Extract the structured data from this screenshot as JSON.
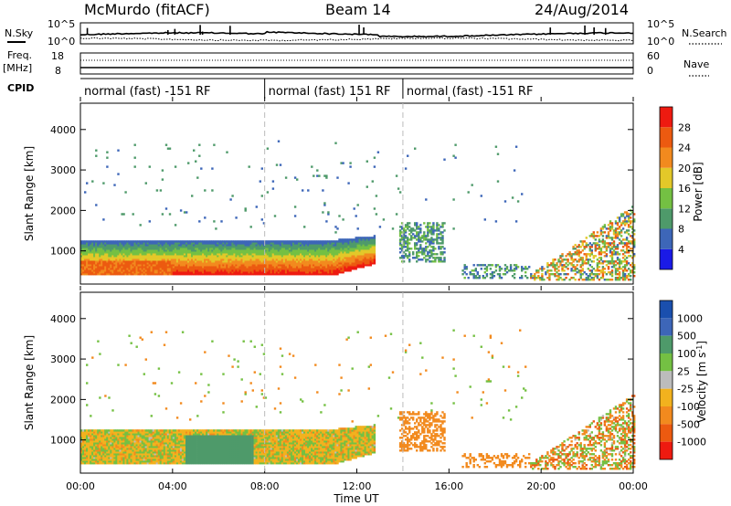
{
  "header": {
    "station": "McMurdo (fitACF)",
    "beam": "Beam 14",
    "date": "24/Aug/2014"
  },
  "summary_panel": {
    "nsky_label": "N.Sky",
    "nsky_ticks": [
      "10^5",
      "10^0"
    ],
    "nsearch_label": "N.Search",
    "nsearch_ticks": [
      "10^5",
      "10^0"
    ],
    "freq_label_1": "Freq.",
    "freq_label_2": "[MHz]",
    "freq_ticks": [
      "18",
      "8"
    ],
    "nave_label": "Nave",
    "nave_ticks": [
      "60",
      "0"
    ],
    "cpid_label": "CPID",
    "cpid_segments": [
      {
        "label": "normal (fast) -151 RF",
        "start": "00:00",
        "end": "08:00"
      },
      {
        "label": "normal (fast) 151 RF",
        "start": "08:00",
        "end": "14:00"
      },
      {
        "label": "normal (fast) -151 RF",
        "start": "14:00",
        "end": "24:00"
      }
    ]
  },
  "colors": {
    "power": [
      "#1a1ae6",
      "#3d66b8",
      "#4e9a6a",
      "#74c043",
      "#e3c829",
      "#f28a1e",
      "#ec5a10",
      "#ee1a10"
    ],
    "velocity": [
      "#ee1a10",
      "#ec5a10",
      "#f28a1e",
      "#f2b21e",
      "#bcbcbc",
      "#74c043",
      "#4e9a6a",
      "#3d66b8",
      "#1a4fae"
    ]
  },
  "chart_data": [
    {
      "type": "heatmap",
      "panel": "power",
      "xlabel": "",
      "ylabel": "Slant Range [km]",
      "xlim": [
        "00:00",
        "24:00"
      ],
      "ylim": [
        180,
        4650
      ],
      "y_ticks": [
        "1000",
        "2000",
        "3000",
        "4000"
      ],
      "colorbar_label": "Power [dB]",
      "colorbar_ticks": [
        "4",
        "8",
        "12",
        "16",
        "20",
        "24",
        "28"
      ],
      "colorbar_range": [
        0,
        32
      ],
      "dominant_features": [
        {
          "start_hr": 0,
          "end_hr": 12.8,
          "range_low_km": 350,
          "range_high_km": 1250,
          "peak_power_db": 30
        },
        {
          "start_hr": 14,
          "end_hr": 15.8,
          "range_low_km": 650,
          "range_high_km": 1700,
          "peak_power_db": 12
        },
        {
          "start_hr": 19.5,
          "end_hr": 24,
          "range_low_km": 250,
          "range_high_km": 2200,
          "peak_power_db": 28
        }
      ]
    },
    {
      "type": "heatmap",
      "panel": "velocity",
      "xlabel": "Time UT",
      "ylabel": "Slant Range [km]",
      "xlim": [
        "00:00",
        "24:00"
      ],
      "ylim": [
        180,
        4650
      ],
      "x_ticks": [
        "00:00",
        "04:00",
        "08:00",
        "12:00",
        "16:00",
        "20:00",
        "00:00"
      ],
      "y_ticks": [
        "1000",
        "2000",
        "3000",
        "4000"
      ],
      "colorbar_label": "Velocity [m s^-1]",
      "colorbar_ticks": [
        "-1000",
        "-500",
        "-100",
        "-25",
        "25",
        "100",
        "500",
        "1000"
      ],
      "dominant_features": [
        {
          "start_hr": 0,
          "end_hr": 12.8,
          "range_low_km": 400,
          "range_high_km": 1300,
          "typical_velocity": "-100 to 100"
        },
        {
          "start_hr": 12.8,
          "end_hr": 15.8,
          "range_low_km": 600,
          "range_high_km": 1800,
          "typical_velocity": "-500 to -100"
        },
        {
          "start_hr": 17,
          "end_hr": 24,
          "range_low_km": 300,
          "range_high_km": 2200,
          "typical_velocity": "-500 to 25"
        }
      ]
    }
  ]
}
